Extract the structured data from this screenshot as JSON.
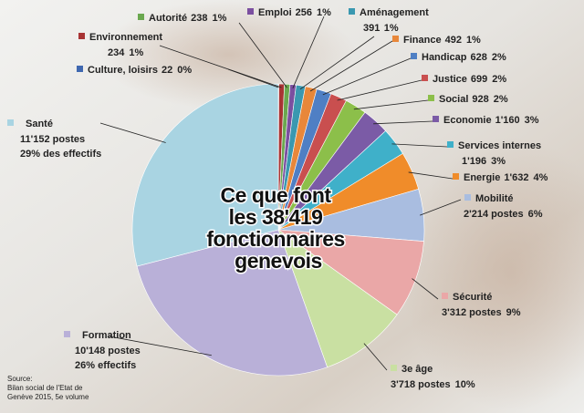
{
  "chart_data": {
    "type": "pie",
    "title_lines": [
      "Ce que font",
      "les 38'419",
      "fonctionnaires",
      "genevois"
    ],
    "source_lines": [
      "Source:",
      "Bilan social de l'Etat de",
      "Genève 2015, 5e volume"
    ],
    "categories": [
      "Culture, loisirs",
      "Environnement",
      "Autorité",
      "Emploi",
      "Aménagement",
      "Finance",
      "Handicap",
      "Justice",
      "Social",
      "Economie",
      "Services internes",
      "Energie",
      "Mobilité",
      "Sécurité",
      "3e âge",
      "Formation",
      "Santé"
    ],
    "values": [
      22,
      234,
      238,
      256,
      391,
      492,
      628,
      699,
      928,
      1160,
      1196,
      1632,
      2214,
      3312,
      3718,
      10148,
      11152
    ],
    "value_labels": [
      "22",
      "234",
      "238",
      "256",
      "391",
      "492",
      "628",
      "699",
      "928",
      "1'160",
      "1'196",
      "1'632",
      "2'214 postes",
      "3'312 postes",
      "3'718 postes",
      "10'148 postes",
      "11'152 postes"
    ],
    "percent_labels": [
      "0%",
      "1%",
      "1%",
      "1%",
      "1%",
      "1%",
      "2%",
      "2%",
      "2%",
      "3%",
      "3%",
      "4%",
      "6%",
      "9%",
      "10%",
      "26% effectifs",
      "29% des effectifs"
    ],
    "colors": [
      "#3f68b0",
      "#a83434",
      "#6aa84f",
      "#7b4fa0",
      "#3a98b0",
      "#e8873a",
      "#4f7fc4",
      "#c94f4f",
      "#8cbf4a",
      "#7b5ba6",
      "#3fb0c9",
      "#f08c2a",
      "#a9bde0",
      "#eaa7a7",
      "#c9e0a2",
      "#b9b0d8",
      "#a9d4e2"
    ]
  }
}
